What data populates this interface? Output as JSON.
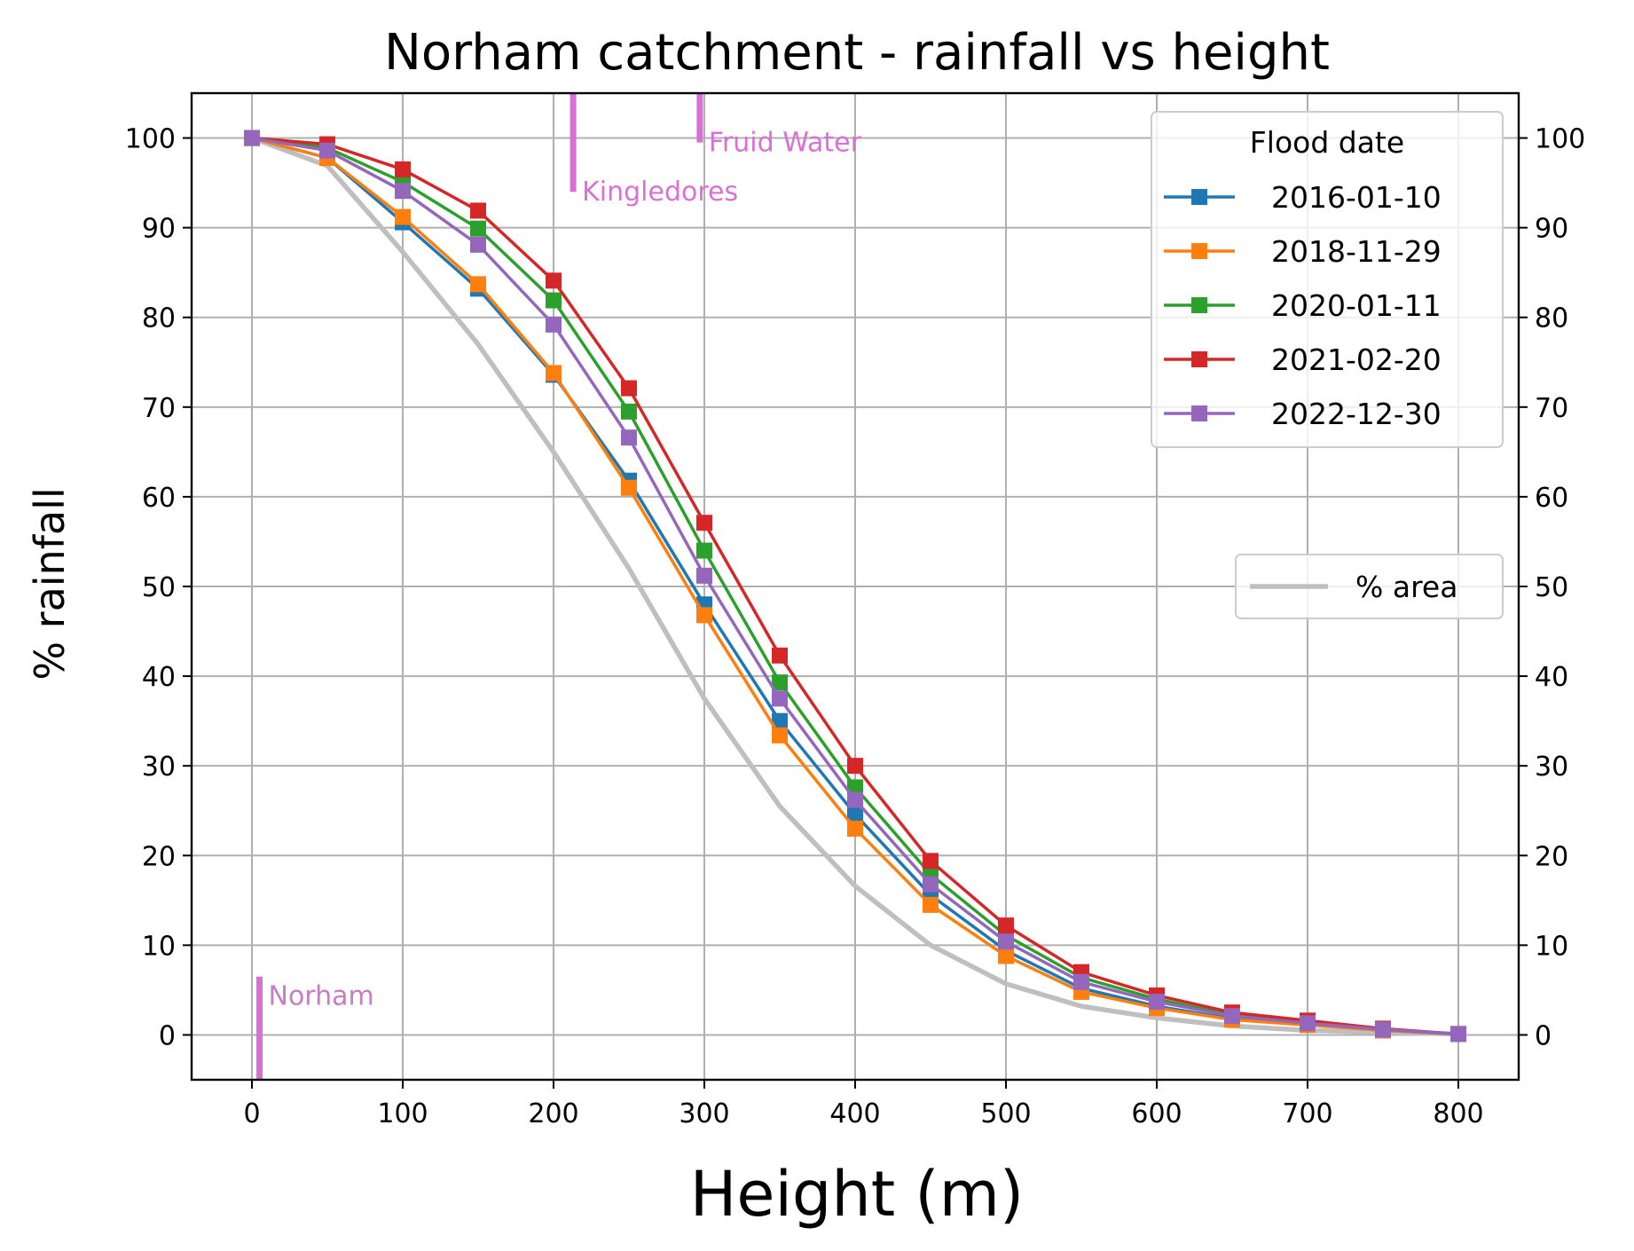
{
  "chart_data": {
    "type": "line",
    "title": "Norham catchment - rainfall vs height",
    "xlabel": "Height (m)",
    "ylabel": "% rainfall",
    "xlim": [
      -40,
      840
    ],
    "ylim": [
      -5,
      105
    ],
    "x_ticks": [
      0,
      100,
      200,
      300,
      400,
      500,
      600,
      700,
      800
    ],
    "y_ticks": [
      0,
      10,
      20,
      30,
      40,
      50,
      60,
      70,
      80,
      90,
      100
    ],
    "grid": true,
    "right_axis_ticks": true,
    "x": [
      0,
      50,
      100,
      150,
      200,
      250,
      300,
      350,
      400,
      450,
      500,
      550,
      600,
      650,
      700,
      750,
      800
    ],
    "legend_title": "Flood date",
    "legend_position": "top-right",
    "series": [
      {
        "name": "2016-01-10",
        "color": "#1f77b4",
        "values": [
          100,
          97.8,
          90.6,
          83.2,
          73.6,
          61.8,
          48.0,
          35.0,
          24.6,
          15.6,
          9.4,
          5.2,
          3.2,
          1.8,
          1.2,
          0.5,
          0.1
        ]
      },
      {
        "name": "2018-11-29",
        "color": "#ff7f0e",
        "values": [
          100,
          97.8,
          91.2,
          83.7,
          73.8,
          61.0,
          46.8,
          33.4,
          23.0,
          14.5,
          8.8,
          4.8,
          3.0,
          1.7,
          1.1,
          0.5,
          0.1
        ]
      },
      {
        "name": "2020-01-11",
        "color": "#2ca02c",
        "values": [
          100,
          98.9,
          95.1,
          89.9,
          81.9,
          69.5,
          54.0,
          39.3,
          27.6,
          17.9,
          11.1,
          6.4,
          4.0,
          2.2,
          1.4,
          0.6,
          0.1
        ]
      },
      {
        "name": "2021-02-20",
        "color": "#d62728",
        "values": [
          100,
          99.3,
          96.5,
          91.9,
          84.1,
          72.1,
          57.1,
          42.3,
          30.0,
          19.4,
          12.2,
          7.0,
          4.4,
          2.5,
          1.6,
          0.7,
          0.1
        ]
      },
      {
        "name": "2022-12-30",
        "color": "#9467bd",
        "values": [
          100,
          98.6,
          94.1,
          88.1,
          79.2,
          66.6,
          51.2,
          37.5,
          26.2,
          16.8,
          10.4,
          5.9,
          3.7,
          2.1,
          1.3,
          0.6,
          0.1
        ]
      }
    ],
    "area_series": {
      "name": "% area",
      "color": "#bfbfbf",
      "legend_position": "center-right",
      "values": [
        100,
        96.9,
        87.3,
        77.0,
        65.0,
        52.0,
        37.5,
        25.5,
        16.6,
        10.0,
        5.7,
        3.2,
        1.9,
        1.0,
        0.5,
        0.3,
        0.1
      ]
    },
    "annotations": [
      {
        "text": "Norham",
        "x": 5,
        "y_from": -5,
        "y_to": 6.5,
        "color": "#da70d6",
        "text_color": "#c77dc4"
      },
      {
        "text": "Kingledores",
        "x": 213,
        "y_from": 94,
        "y_to": 105,
        "color": "#da70d6",
        "text_color": "#da70d6"
      },
      {
        "text": "Fruid Water",
        "x": 297,
        "y_from": 99.5,
        "y_to": 105,
        "color": "#da70d6",
        "text_color": "#da70d6"
      }
    ]
  }
}
